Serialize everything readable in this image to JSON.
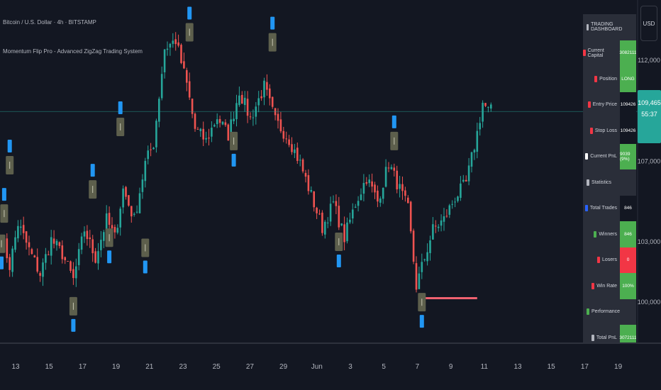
{
  "header": {
    "symbol_line": "Bitcoin / U.S. Dollar · 4h · BITSTAMP",
    "indicator_line": "Momentum Flip Pro - Advanced ZigZag Trading System"
  },
  "currency_button": "USD",
  "last_price": {
    "value": "109,465",
    "countdown": "55:37"
  },
  "dashboard": {
    "rows": [
      {
        "label": "TRADING DASHBOARD",
        "value": "",
        "type": "header",
        "icon_color": "#b2b5be"
      },
      {
        "label": "Current Capital",
        "value": "3082111",
        "type": "green",
        "icon_color": "#f23645"
      },
      {
        "label": "Position",
        "value": "LONG",
        "type": "green",
        "icon_color": "#f23645"
      },
      {
        "label": "Entry Price",
        "value": "109426",
        "type": "plain",
        "icon_color": "#f23645"
      },
      {
        "label": "Stop Loss",
        "value": "109426",
        "type": "plain",
        "icon_color": "#f23645"
      },
      {
        "label": "Current PnL",
        "value": "9039 (9%)",
        "type": "green",
        "icon_color": "#ffffff"
      },
      {
        "label": "Statistics",
        "value": "",
        "type": "header",
        "icon_color": "#b2b5be"
      },
      {
        "label": "Total Trades",
        "value": "846",
        "type": "plain",
        "icon_color": "#2962ff"
      },
      {
        "label": "Winners",
        "value": "846",
        "type": "green",
        "icon_color": "#4caf50"
      },
      {
        "label": "Losers",
        "value": "0",
        "type": "red",
        "icon_color": "#f23645"
      },
      {
        "label": "Win Rate",
        "value": "100%",
        "type": "green",
        "icon_color": "#f23645"
      },
      {
        "label": "Performance",
        "value": "",
        "type": "header",
        "icon_color": "#4caf50"
      },
      {
        "label": "Total PnL",
        "value": "3072111",
        "type": "green",
        "icon_color": "#b2b5be"
      }
    ]
  },
  "chart_data": {
    "type": "candlestick",
    "x_tick_labels": [
      "13",
      "15",
      "17",
      "19",
      "21",
      "23",
      "25",
      "27",
      "29",
      "Jun",
      "3",
      "5",
      "7",
      "9",
      "11",
      "13",
      "15",
      "17",
      "19"
    ],
    "y_tick_labels": [
      {
        "label": "112,000",
        "value": 112000
      },
      {
        "label": "107,000",
        "value": 107000
      },
      {
        "label": "103,000",
        "value": 103000
      },
      {
        "label": "100,000",
        "value": 100000
      }
    ],
    "ylim": [
      98000,
      115000
    ],
    "last_price": 109465,
    "price_line": 109465,
    "colors": {
      "up": "#26a69a",
      "down": "#ef5350",
      "bg": "#131722",
      "label_box": "#5d5f4c",
      "signal": "#2196f3",
      "stop_line": "#f06270"
    },
    "stop_line": {
      "price": 100200,
      "from_index": 152,
      "to_index": 172
    },
    "candles": [],
    "anchors": [
      [
        0,
        103400
      ],
      [
        3,
        101800
      ],
      [
        6,
        103900
      ],
      [
        10,
        102600
      ],
      [
        14,
        101400
      ],
      [
        18,
        103100
      ],
      [
        22,
        102400
      ],
      [
        26,
        101100
      ],
      [
        30,
        103600
      ],
      [
        34,
        102200
      ],
      [
        38,
        104100
      ],
      [
        41,
        103200
      ],
      [
        44,
        105600
      ],
      [
        48,
        104100
      ],
      [
        52,
        106900
      ],
      [
        55,
        107900
      ],
      [
        59,
        112600
      ],
      [
        63,
        113000
      ],
      [
        67,
        110800
      ],
      [
        70,
        108600
      ],
      [
        74,
        108000
      ],
      [
        78,
        109200
      ],
      [
        82,
        108300
      ],
      [
        86,
        110500
      ],
      [
        90,
        109100
      ],
      [
        95,
        110700
      ],
      [
        99,
        109000
      ],
      [
        104,
        108100
      ],
      [
        108,
        106900
      ],
      [
        112,
        105300
      ],
      [
        116,
        103700
      ],
      [
        120,
        104900
      ],
      [
        124,
        103200
      ],
      [
        128,
        104900
      ],
      [
        132,
        106200
      ],
      [
        136,
        105000
      ],
      [
        140,
        106900
      ],
      [
        144,
        105600
      ],
      [
        147,
        104600
      ],
      [
        150,
        100800
      ],
      [
        153,
        102200
      ],
      [
        156,
        103600
      ],
      [
        160,
        104100
      ],
      [
        164,
        105200
      ],
      [
        168,
        105900
      ],
      [
        172,
        108400
      ],
      [
        174,
        109900
      ],
      [
        176,
        109500
      ]
    ],
    "annotations": [
      {
        "index": 3,
        "type": "signal-box",
        "price": 106800,
        "pos": "above"
      },
      {
        "index": 1,
        "type": "signal-box",
        "price": 104400,
        "pos": "above"
      },
      {
        "index": 0,
        "type": "signal-box",
        "price": 102900,
        "pos": "below"
      },
      {
        "index": 26,
        "type": "signal-box",
        "price": 99800,
        "pos": "below"
      },
      {
        "index": 33,
        "type": "signal-box",
        "price": 105600,
        "pos": "above"
      },
      {
        "index": 39,
        "type": "signal-box",
        "price": 103200,
        "pos": "below"
      },
      {
        "index": 43,
        "type": "signal-box",
        "price": 108700,
        "pos": "above"
      },
      {
        "index": 52,
        "type": "signal-box",
        "price": 102700,
        "pos": "below"
      },
      {
        "index": 68,
        "type": "signal-box",
        "price": 113400,
        "pos": "above"
      },
      {
        "index": 84,
        "type": "signal-box",
        "price": 108000,
        "pos": "below"
      },
      {
        "index": 98,
        "type": "signal-box",
        "price": 112900,
        "pos": "above"
      },
      {
        "index": 122,
        "type": "signal-box",
        "price": 103000,
        "pos": "below"
      },
      {
        "index": 142,
        "type": "signal-box",
        "price": 108000,
        "pos": "above"
      },
      {
        "index": 152,
        "type": "signal-box",
        "price": 100000,
        "pos": "below"
      }
    ],
    "grid": false
  }
}
